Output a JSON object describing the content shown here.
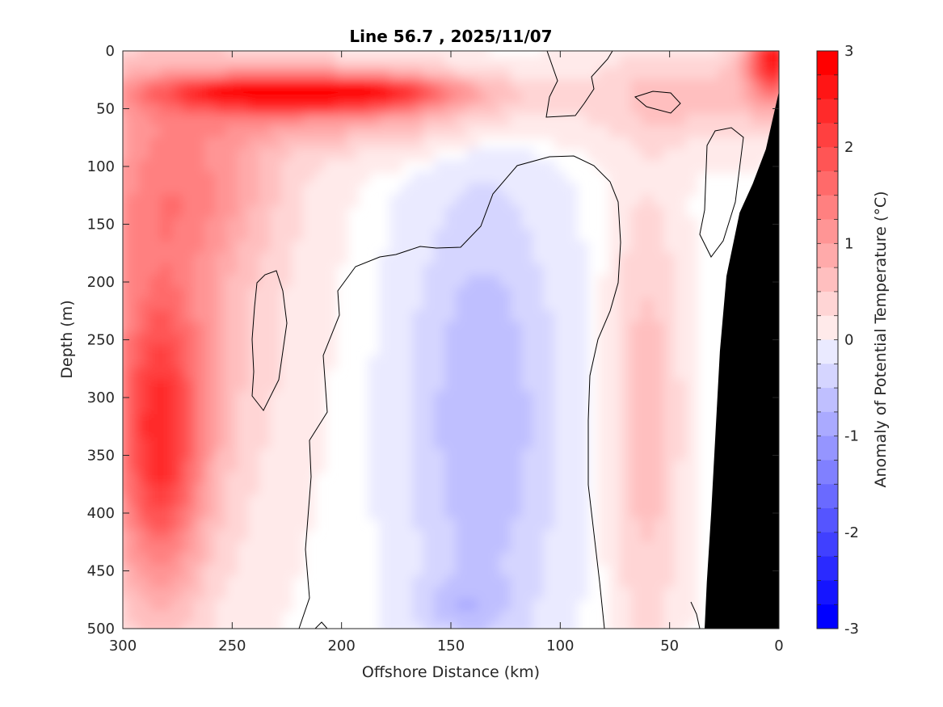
{
  "chart_data": {
    "type": "heatmap",
    "title": "Line 56.7 , 2025/11/07",
    "xlabel": "Offshore Distance (km)",
    "ylabel": "Depth (m)",
    "xlim": [
      300,
      0
    ],
    "ylim": [
      0,
      500
    ],
    "xticks": [
      300,
      250,
      200,
      150,
      100,
      50,
      0
    ],
    "yticks": [
      0,
      50,
      100,
      150,
      200,
      250,
      300,
      350,
      400,
      450,
      500
    ],
    "colorbar": {
      "label": "Anomaly of Potential Temperature (°C)",
      "range": [
        -3,
        3
      ],
      "step": 0.25,
      "ticks": [
        3,
        2,
        1,
        0,
        -1,
        -2,
        -3
      ]
    },
    "contour_line_level": 0,
    "seafloor_color": "#000000",
    "features": [
      {
        "name": "Near-surface warm core",
        "x_range": [
          275,
          125
        ],
        "depth_range": [
          20,
          55
        ],
        "max_anomaly": 3.0
      },
      {
        "name": "Deep warm core",
        "x_range": [
          300,
          240
        ],
        "depth_range": [
          180,
          490
        ],
        "max_anomaly": 1.75
      },
      {
        "name": "Mid-section cold tongue",
        "x_range": [
          165,
          90
        ],
        "depth_range": [
          150,
          500
        ],
        "min_anomaly": -0.75
      },
      {
        "name": "Nearshore warm band",
        "x_range": [
          75,
          40
        ],
        "depth_range": [
          100,
          500
        ],
        "max_anomaly": 0.75
      },
      {
        "name": "Coastal surface warm",
        "x_range": [
          20,
          0
        ],
        "depth_range": [
          0,
          50
        ],
        "max_anomaly": 2.5
      }
    ],
    "shelf_profile": [
      {
        "x": 0,
        "depth": 35
      },
      {
        "x": 3,
        "depth": 60
      },
      {
        "x": 6,
        "depth": 85
      },
      {
        "x": 12,
        "depth": 115
      },
      {
        "x": 18,
        "depth": 140
      },
      {
        "x": 24,
        "depth": 195
      },
      {
        "x": 27,
        "depth": 260
      },
      {
        "x": 29,
        "depth": 330
      },
      {
        "x": 31,
        "depth": 400
      },
      {
        "x": 33,
        "depth": 460
      },
      {
        "x": 34,
        "depth": 500
      }
    ]
  }
}
